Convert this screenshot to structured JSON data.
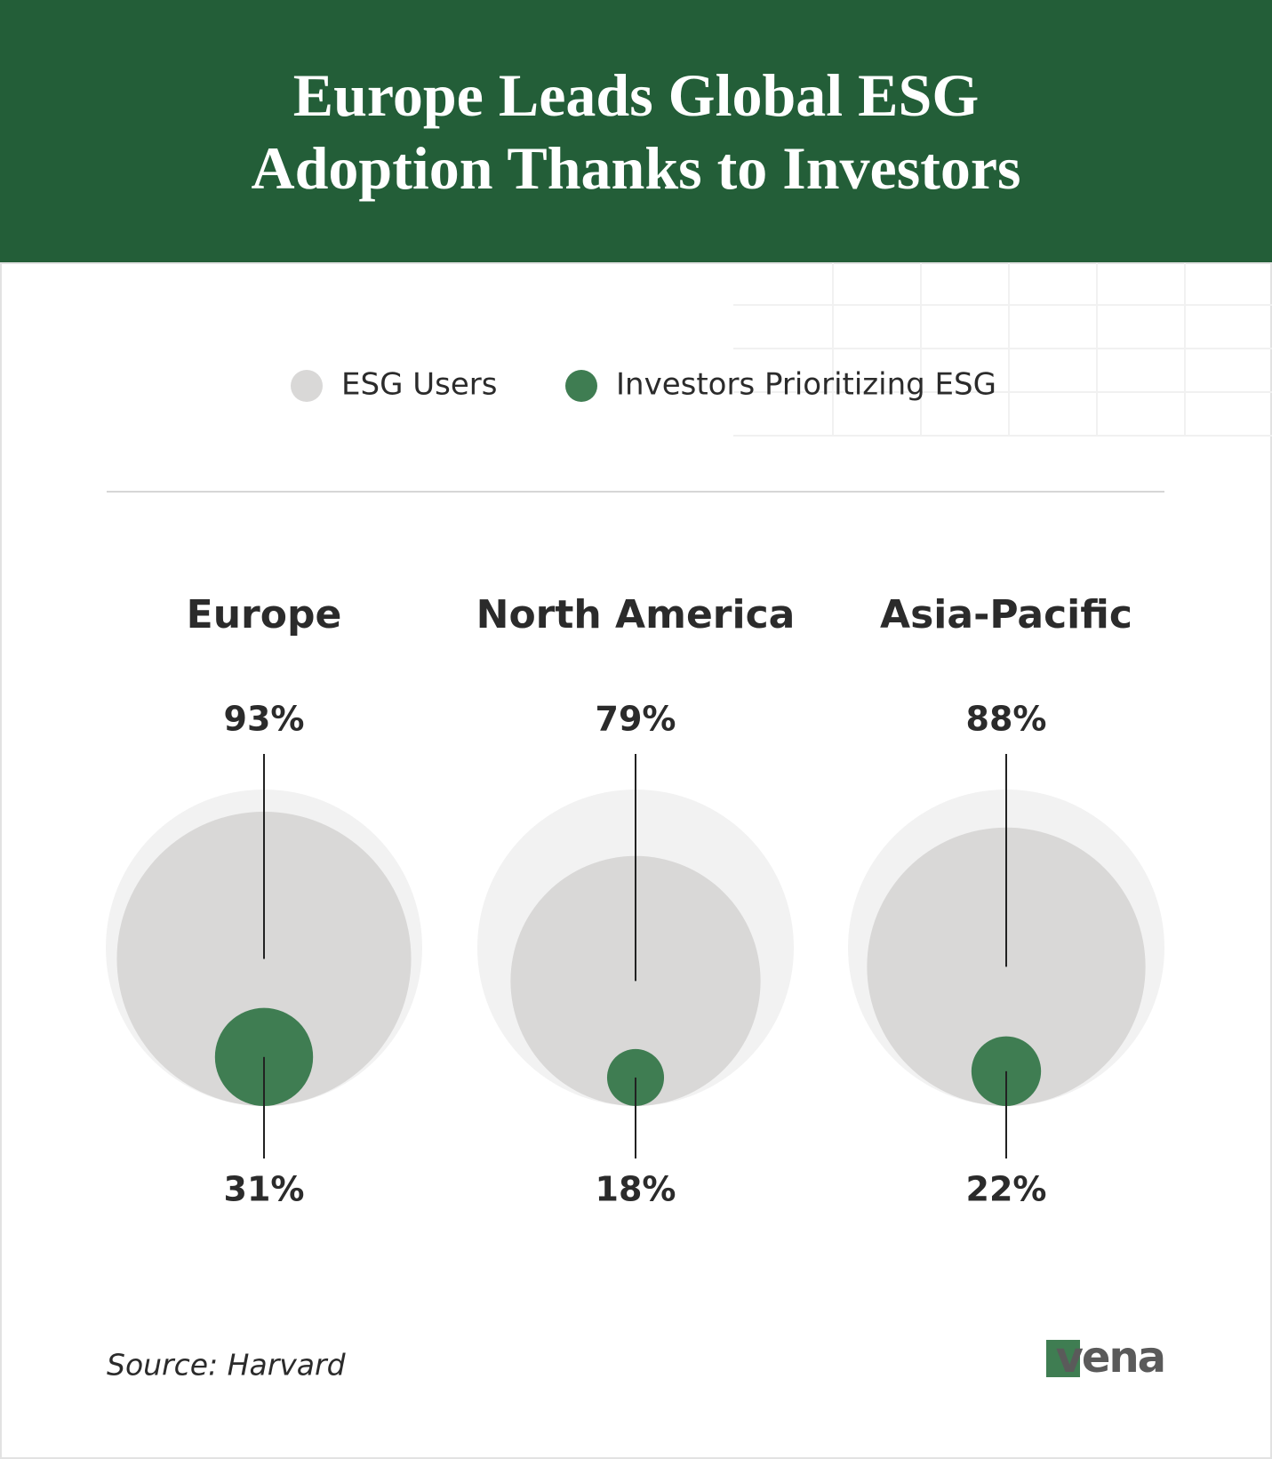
{
  "chart_data": {
    "type": "nested-bubble",
    "title": "Europe Leads Global ESG Adoption Thanks to Investors",
    "categories": [
      "Europe",
      "North America",
      "Asia-Pacific"
    ],
    "series": [
      {
        "name": "ESG Users",
        "color": "#d9d8d7",
        "values": [
          93,
          79,
          88
        ],
        "value_labels": [
          "93%",
          "79%",
          "88%"
        ]
      },
      {
        "name": "Investors Prioritizing ESG",
        "color": "#3f7d52",
        "values": [
          31,
          18,
          22
        ],
        "value_labels": [
          "31%",
          "18%",
          "22%"
        ]
      }
    ],
    "source": "Source: Harvard",
    "logo": "vena"
  }
}
